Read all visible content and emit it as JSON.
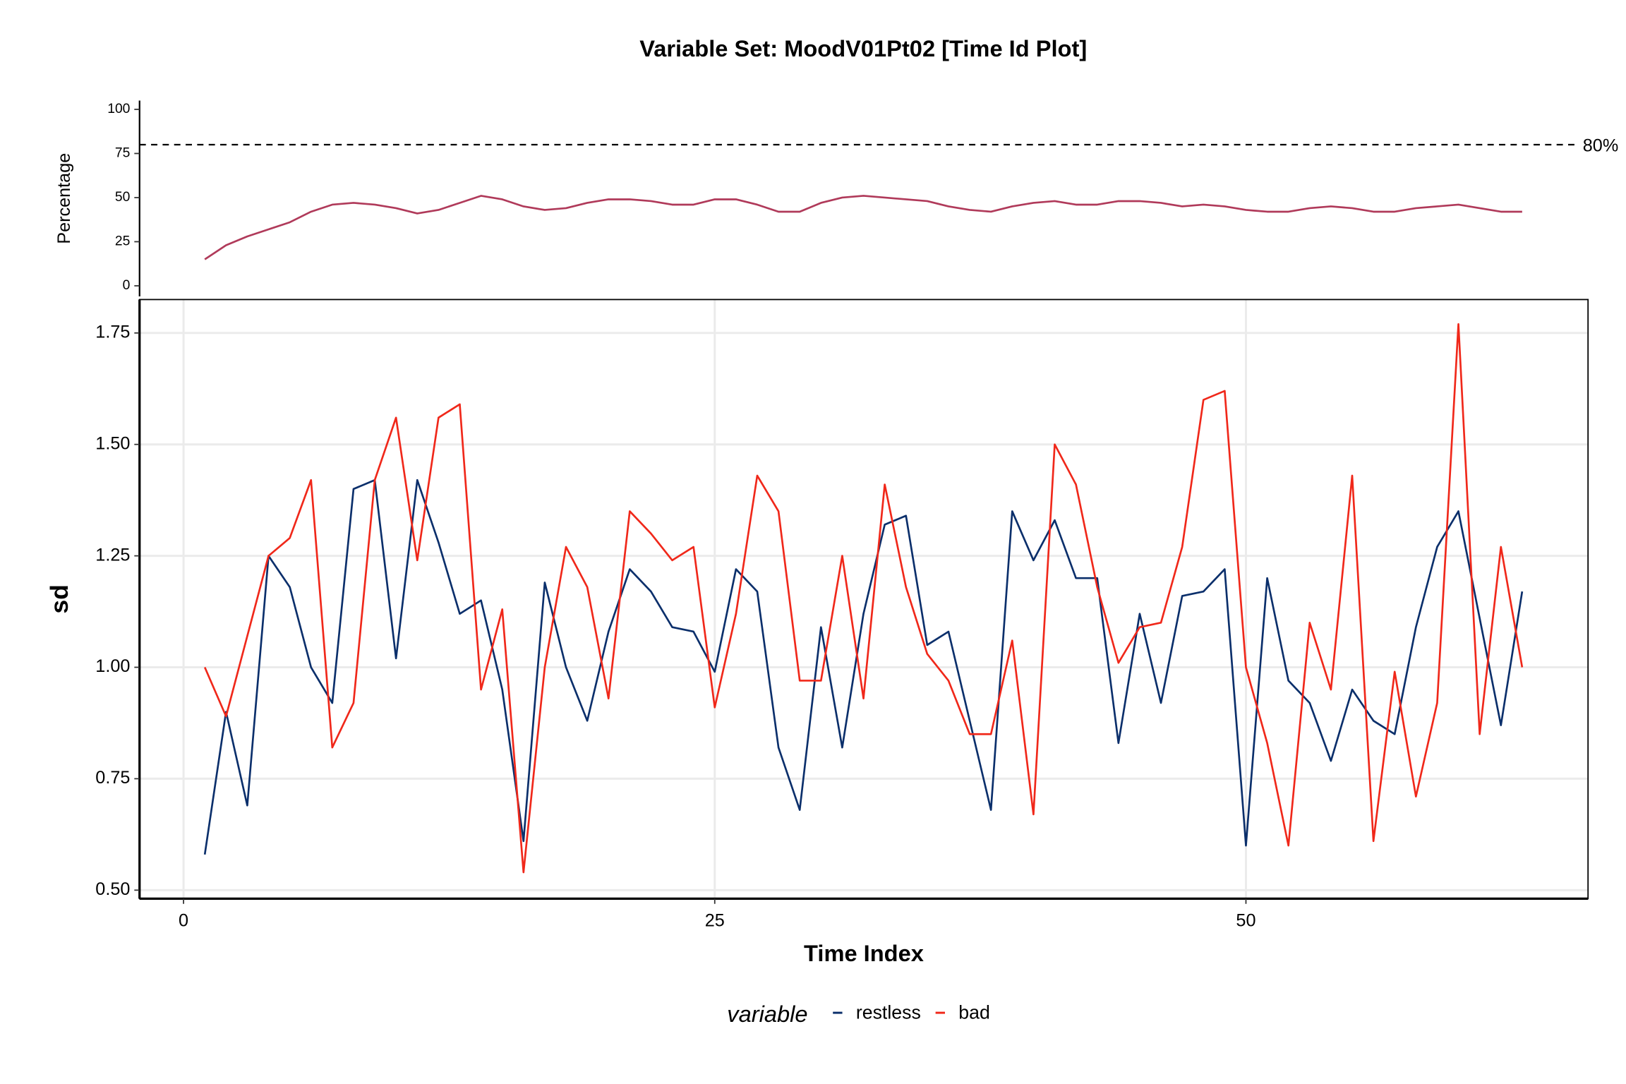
{
  "title": "Variable Set: MoodV01Pt02 [Time Id Plot]",
  "chart_data": [
    {
      "type": "line",
      "ylabel": "Percentage",
      "x": [
        1,
        2,
        3,
        4,
        5,
        6,
        7,
        8,
        9,
        10,
        11,
        12,
        13,
        14,
        15,
        16,
        17,
        18,
        19,
        20,
        21,
        22,
        23,
        24,
        25,
        26,
        27,
        28,
        29,
        30,
        31,
        32,
        33,
        34,
        35,
        36,
        37,
        38,
        39,
        40,
        41,
        42,
        43,
        44,
        45,
        46,
        47,
        48,
        49,
        50,
        51,
        52,
        53,
        54,
        55,
        56,
        57,
        58,
        59,
        60,
        61,
        62,
        63
      ],
      "series": [
        {
          "color": "#b03a5a",
          "values": [
            15,
            23,
            28,
            32,
            36,
            42,
            46,
            47,
            46,
            44,
            41,
            43,
            47,
            51,
            49,
            45,
            43,
            44,
            47,
            49,
            49,
            48,
            46,
            46,
            49,
            49,
            46,
            42,
            42,
            47,
            50,
            51,
            50,
            49,
            48,
            45,
            43,
            42,
            45,
            47,
            48,
            46,
            46,
            48,
            48,
            47,
            45,
            46,
            45,
            43,
            42,
            42,
            44,
            45,
            44,
            42,
            42,
            44,
            45,
            46,
            44,
            42,
            42
          ]
        }
      ],
      "hline": {
        "value": 80,
        "label": "80%"
      },
      "xlim": [
        -2.07,
        66.1
      ],
      "ylim": [
        -6,
        105
      ],
      "yticks": [
        0,
        25,
        50,
        75,
        100
      ]
    },
    {
      "type": "line",
      "xlabel": "Time Index",
      "ylabel": "sd",
      "legend_title": "variable",
      "grid": true,
      "x": [
        1,
        2,
        3,
        4,
        5,
        6,
        7,
        8,
        9,
        10,
        11,
        12,
        13,
        14,
        15,
        16,
        17,
        18,
        19,
        20,
        21,
        22,
        23,
        24,
        25,
        26,
        27,
        28,
        29,
        30,
        31,
        32,
        33,
        34,
        35,
        36,
        37,
        38,
        39,
        40,
        41,
        42,
        43,
        44,
        45,
        46,
        47,
        48,
        49,
        50,
        51,
        52,
        53,
        54,
        55,
        56,
        57,
        58,
        59,
        60,
        61,
        62,
        63
      ],
      "series": [
        {
          "name": "restless",
          "color": "#0b2f6b",
          "values": [
            0.58,
            0.9,
            0.69,
            1.25,
            1.18,
            1.0,
            0.92,
            1.4,
            1.42,
            1.02,
            1.42,
            1.28,
            1.12,
            1.15,
            0.95,
            0.61,
            1.19,
            1.0,
            0.88,
            1.08,
            1.22,
            1.17,
            1.09,
            1.08,
            0.99,
            1.22,
            1.17,
            0.82,
            0.68,
            1.09,
            0.82,
            1.12,
            1.32,
            1.34,
            1.05,
            1.08,
            0.88,
            0.68,
            1.35,
            1.24,
            1.33,
            1.2,
            1.2,
            0.83,
            1.12,
            0.92,
            1.16,
            1.17,
            1.22,
            0.6,
            1.2,
            0.97,
            0.92,
            0.79,
            0.95,
            0.88,
            0.85,
            1.09,
            1.27,
            1.35,
            1.11,
            0.87,
            1.17
          ]
        },
        {
          "name": "bad",
          "color": "#f0281a",
          "values": [
            1.0,
            0.89,
            1.07,
            1.25,
            1.29,
            1.42,
            0.82,
            0.92,
            1.42,
            1.56,
            1.24,
            1.56,
            1.59,
            0.95,
            1.13,
            0.54,
            1.0,
            1.27,
            1.18,
            0.93,
            1.35,
            1.3,
            1.24,
            1.27,
            0.91,
            1.12,
            1.43,
            1.35,
            0.97,
            0.97,
            1.25,
            0.93,
            1.41,
            1.18,
            1.03,
            0.97,
            0.85,
            0.85,
            1.06,
            0.67,
            1.5,
            1.41,
            1.18,
            1.01,
            1.09,
            1.1,
            1.27,
            1.6,
            1.62,
            1.0,
            0.83,
            0.6,
            1.1,
            0.95,
            1.43,
            0.61,
            0.99,
            0.71,
            0.92,
            1.77,
            0.85,
            1.27,
            1.0
          ]
        }
      ],
      "xlim": [
        -2.07,
        66.1
      ],
      "ylim": [
        0.481,
        1.825
      ],
      "xticks": [
        0,
        25,
        50
      ],
      "yticks": [
        {
          "value": 0.5,
          "label": "0.50"
        },
        {
          "value": 0.75,
          "label": "0.75"
        },
        {
          "value": 1,
          "label": "1.00"
        },
        {
          "value": 1.25,
          "label": "1.25"
        },
        {
          "value": 1.5,
          "label": "1.50"
        },
        {
          "value": 1.75,
          "label": "1.75"
        }
      ]
    }
  ]
}
